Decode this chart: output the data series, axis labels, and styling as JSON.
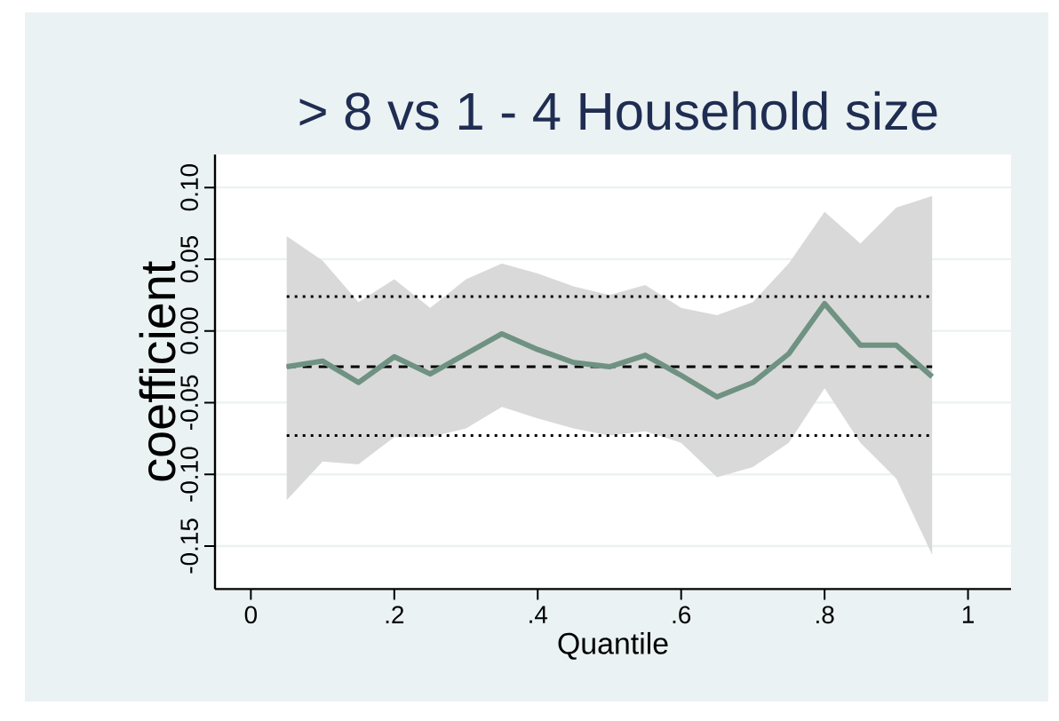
{
  "chart_data": {
    "type": "line",
    "title": "> 8 vs 1 - 4 Household size",
    "xlabel": "Quantile",
    "ylabel": "coefficient",
    "x": [
      0.05,
      0.1,
      0.15,
      0.2,
      0.25,
      0.3,
      0.35,
      0.4,
      0.45,
      0.5,
      0.55,
      0.6,
      0.65,
      0.7,
      0.75,
      0.8,
      0.85,
      0.9,
      0.95
    ],
    "series": [
      {
        "color": "#6f9282",
        "values": [
          -0.025,
          -0.021,
          -0.036,
          -0.018,
          -0.03,
          -0.016,
          -0.002,
          -0.013,
          -0.022,
          -0.025,
          -0.017,
          -0.031,
          -0.046,
          -0.036,
          -0.016,
          0.019,
          -0.01,
          -0.01,
          -0.032
        ],
        "lower": [
          -0.118,
          -0.091,
          -0.093,
          -0.074,
          -0.074,
          -0.068,
          -0.053,
          -0.061,
          -0.068,
          -0.073,
          -0.07,
          -0.078,
          -0.102,
          -0.095,
          -0.078,
          -0.04,
          -0.078,
          -0.103,
          -0.156
        ],
        "upper": [
          0.066,
          0.049,
          0.02,
          0.036,
          0.016,
          0.036,
          0.047,
          0.04,
          0.031,
          0.025,
          0.032,
          0.016,
          0.011,
          0.02,
          0.047,
          0.083,
          0.061,
          0.086,
          0.094
        ]
      }
    ],
    "ref_lines": [
      {
        "axis": "y",
        "value": -0.025,
        "color": "#000000",
        "line_style": "dashed"
      },
      {
        "axis": "y",
        "value": 0.024,
        "color": "#000000",
        "line_style": "dotted"
      },
      {
        "axis": "y",
        "value": -0.073,
        "color": "#000000",
        "line_style": "dotted"
      }
    ],
    "xlim": [
      -0.05,
      1.06
    ],
    "ylim": [
      -0.18,
      0.123
    ],
    "xticks": [
      0,
      {
        "value": 0.2,
        "label": ".2"
      },
      {
        "value": 0.4,
        "label": ".4"
      },
      {
        "value": 0.6,
        "label": ".6"
      },
      {
        "value": 0.8,
        "label": ".8"
      },
      1
    ],
    "yticks": [
      {
        "value": -0.15,
        "label": "-0.15"
      },
      {
        "value": -0.1,
        "label": "-0.10"
      },
      {
        "value": -0.05,
        "label": "-0.05"
      },
      {
        "value": 0,
        "label": "0.00"
      },
      {
        "value": 0.05,
        "label": "0.05"
      },
      {
        "value": 0.1,
        "label": "0.10"
      }
    ],
    "grid": "y",
    "marker": "none",
    "line_style": "solid"
  }
}
